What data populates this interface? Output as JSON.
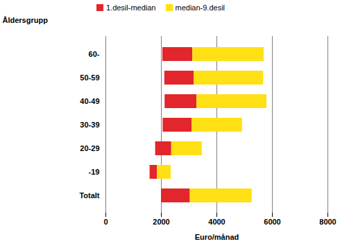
{
  "chart_data": {
    "type": "bar",
    "orientation": "horizontal",
    "x_label": "Euro/månad",
    "y_label": "Åldersgrupp",
    "categories": [
      "60-",
      "50-59",
      "40-49",
      "30-39",
      "20-29",
      "-19",
      "Totalt"
    ],
    "series": [
      {
        "name": "1.desil-median",
        "color": "#e2262b",
        "values": [
          [
            2050,
            3130
          ],
          [
            2120,
            3180
          ],
          [
            2130,
            3280
          ],
          [
            2060,
            3100
          ],
          [
            1790,
            2370
          ],
          [
            1590,
            1850
          ],
          [
            2000,
            3040
          ]
        ]
      },
      {
        "name": "median-9.desil",
        "color": "#ffe014",
        "values": [
          [
            3130,
            5700
          ],
          [
            3180,
            5680
          ],
          [
            3280,
            5800
          ],
          [
            3100,
            4920
          ],
          [
            2370,
            3470
          ],
          [
            1850,
            2350
          ],
          [
            3040,
            5270
          ]
        ]
      }
    ],
    "xlim": [
      0,
      8000
    ],
    "xticks": [
      0,
      2000,
      4000,
      6000,
      8000
    ],
    "grid": true,
    "legend": "top"
  }
}
